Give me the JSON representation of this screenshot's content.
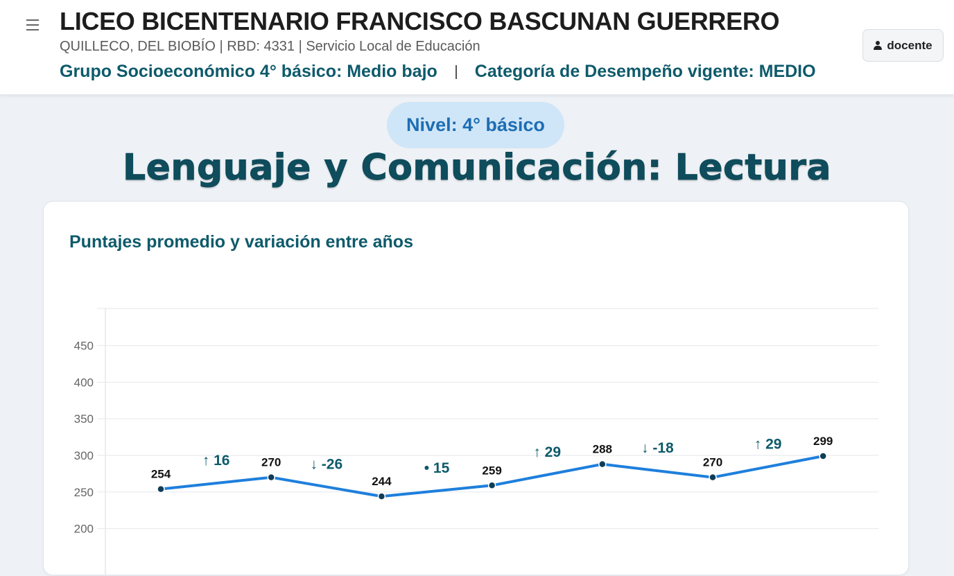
{
  "header": {
    "school_name": "LICEO BICENTENARIO FRANCISCO BASCUNAN GUERRERO",
    "meta": "QUILLECO, DEL BIOBÍO | RBD: 4331 | Servicio Local de Educación",
    "socioeconomic": "Grupo Socioeconómico 4° básico: Medio bajo",
    "performance": "Categoría de Desempeño vigente: MEDIO",
    "user_label": "docente"
  },
  "level_label": "Nivel: 4° básico",
  "subject_title": "Lenguaje  y Comunicación: Lectura",
  "card_title": "Puntajes promedio y variación entre años",
  "colors": {
    "line": "#1e7fdc",
    "point": "#0f3d57",
    "variation_text": "#0e5a6b",
    "grid": "#e5e7ea"
  },
  "chart_data": {
    "type": "line",
    "title": "Puntajes promedio y variación entre años",
    "values": [
      254,
      270,
      244,
      259,
      288,
      270,
      299
    ],
    "point_labels": [
      "254",
      "270",
      "244",
      "259",
      "288",
      "270",
      "299"
    ],
    "variations": [
      {
        "symbol": "↑",
        "value": "16"
      },
      {
        "symbol": "↓",
        "value": "-26"
      },
      {
        "symbol": "•",
        "value": "15"
      },
      {
        "symbol": "↑",
        "value": "29"
      },
      {
        "symbol": "↓",
        "value": "-18"
      },
      {
        "symbol": "↑",
        "value": "29"
      }
    ],
    "y_ticks": [
      "450",
      "400",
      "350",
      "300",
      "250",
      "200"
    ],
    "y_tick_values": [
      450,
      400,
      350,
      300,
      250,
      200
    ],
    "ylim": [
      150,
      500
    ],
    "grid": true
  }
}
